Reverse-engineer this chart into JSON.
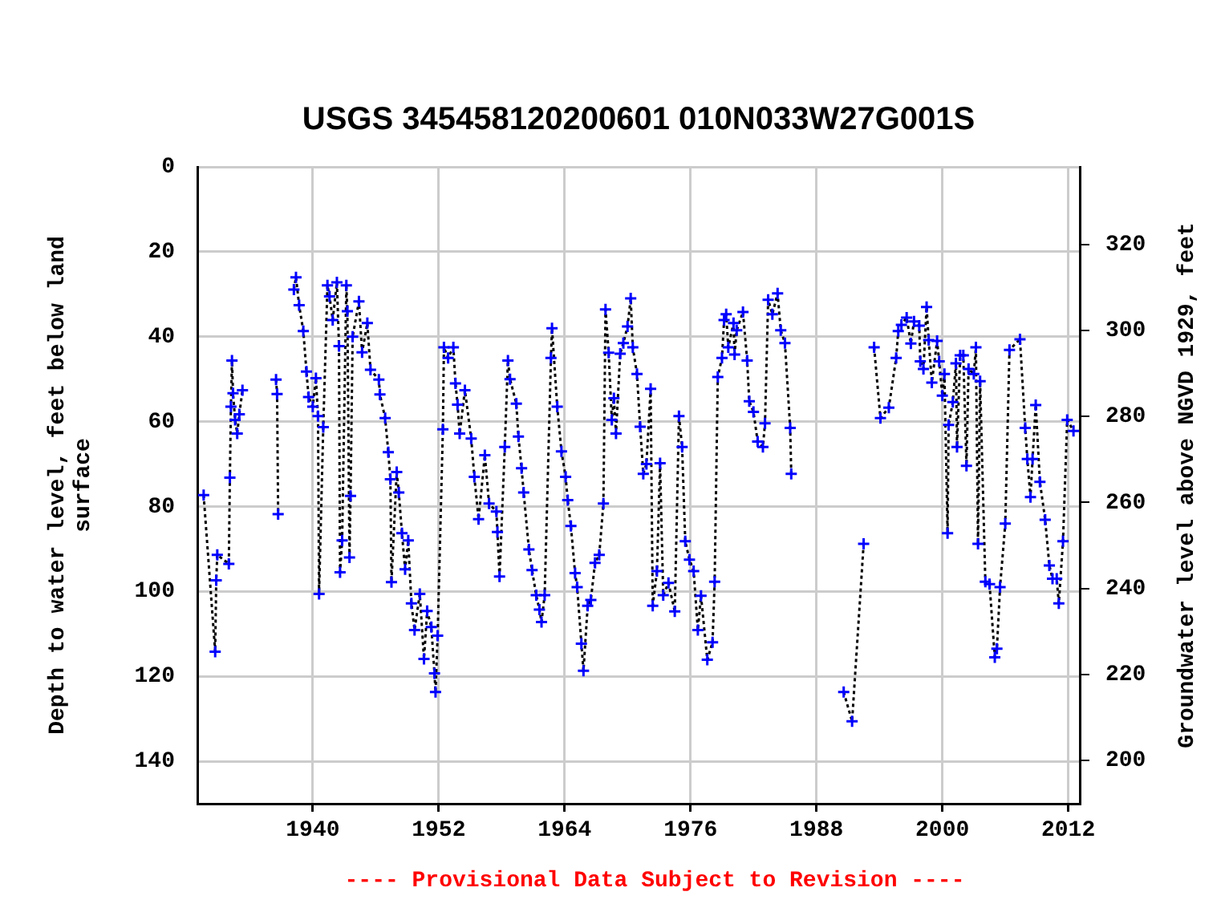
{
  "chart_data": {
    "type": "line",
    "title": "USGS 345458120200601 010N033W27G001S",
    "ylabel": "Depth to water level, feet below land surface",
    "y2label": "Groundwater level above NGVD 1929, feet",
    "annotations": [
      "---- Provisional Data Subject to Revision ----"
    ],
    "xlim": [
      1929,
      2013.1
    ],
    "xticks": [
      1940,
      1952,
      1964,
      1976,
      1988,
      2000,
      2012
    ],
    "ylim": [
      150,
      0
    ],
    "yticks": [
      0,
      20,
      40,
      60,
      80,
      100,
      120,
      140
    ],
    "y2lim": [
      190,
      338
    ],
    "y2ticks": [
      200,
      220,
      240,
      260,
      280,
      300,
      320
    ],
    "grid": true,
    "legend": false,
    "marker": "cross",
    "line_style": "dotted",
    "series": [
      {
        "color": "#0000ff",
        "x": [
          1929.6,
          1930.7,
          1930.8,
          1930.9,
          1932.0,
          1932.1,
          1932.2,
          1932.3,
          1932.4,
          1932.6,
          1932.8,
          1933.0,
          1933.3,
          1935,
          1936.5,
          1936.6,
          1936.7,
          1937.5,
          1938.2,
          1938.4,
          1938.7,
          1939.1,
          1939.4,
          1939.6,
          1940.0,
          1940.3,
          1940.5,
          1940.6,
          1941.0,
          1941.4,
          1941.6,
          1941.9,
          1942.3,
          1942.5,
          1942.6,
          1942.8,
          1943.2,
          1943.3,
          1943.5,
          1943.6,
          1943.8,
          1944.4,
          1944.7,
          1945.2,
          1945.5,
          1946.3,
          1946.4,
          1946.9,
          1947.2,
          1947.4,
          1947.5,
          1948.0,
          1948.2,
          1948.5,
          1948.8,
          1949.1,
          1949.4,
          1949.7,
          1950.2,
          1950.6,
          1950.9,
          1951.3,
          1951.6,
          1951.7,
          1951.9,
          1952.4,
          1952.5,
          1952.9,
          1953.4,
          1953.6,
          1953.8,
          1954.0,
          1954.5,
          1955.1,
          1955.4,
          1955.8,
          1956.4,
          1956.8,
          1957.5,
          1957.6,
          1957.8,
          1958.3,
          1958.6,
          1958.8,
          1959.4,
          1959.6,
          1959.9,
          1960.1,
          1960.6,
          1960.9,
          1961.3,
          1961.6,
          1961.8,
          1962.1,
          1962.7,
          1962.8,
          1963.3,
          1963.7,
          1964.1,
          1964.3,
          1964.6,
          1965.0,
          1965.2,
          1965.6,
          1965.8,
          1966.2,
          1966.5,
          1966.9,
          1967.3,
          1967.7,
          1967.9,
          1968.2,
          1968.5,
          1968.7,
          1968.9,
          1969.3,
          1969.6,
          1970.0,
          1970.3,
          1970.5,
          1970.9,
          1971.2,
          1971.5,
          1971.8,
          1972.2,
          1972.4,
          1972.8,
          1973.1,
          1973.4,
          1973.9,
          1974.5,
          1974.9,
          1975.2,
          1975.5,
          1975.9,
          1976.3,
          1976.7,
          1977.0,
          1977.6,
          1978.1,
          1978.3,
          1978.6,
          1979.0,
          1979.2,
          1979.4,
          1979.6,
          1980.1,
          1980.2,
          1980.4,
          1981.0,
          1981.4,
          1981.6,
          1982.0,
          1982.4,
          1982.9,
          1983.1,
          1983.4,
          1983.8,
          1984.3,
          1984.6,
          1985.0,
          1985.5,
          1985.6,
          1988,
          1990.6,
          1991.4,
          1992.5,
          1993,
          1993.5,
          1994.1,
          1994.9,
          1995.6,
          1995.8,
          1996.1,
          1996.6,
          1997.0,
          1997.3,
          1997.8,
          1997.9,
          1998.2,
          1998.5,
          1998.7,
          1999.0,
          1999.5,
          1999.7,
          2000.0,
          2000.2,
          2000.5,
          2000.6,
          2001.0,
          2001.3,
          2001.4,
          2001.7,
          2002.0,
          2002.3,
          2002.5,
          2003.0,
          2003.2,
          2003.4,
          2003.6,
          2004.1,
          2004.5,
          2005.0,
          2005.2,
          2005.5,
          2006.0,
          2006.4,
          2007.4,
          2007.9,
          2008.1,
          2008.4,
          2008.6,
          2008.9,
          2009.3,
          2009.8,
          2010.2,
          2010.5,
          2010.9,
          2011.1,
          2011.5,
          2011.9,
          2012.5
        ],
        "values": [
          77.3,
          114.2,
          97.4,
          91.4,
          93.5,
          73.2,
          56.5,
          45.6,
          53.3,
          59.6,
          62.8,
          58.3,
          52.6,
          null,
          50.1,
          53.5,
          81.8,
          null,
          28.9,
          26,
          32.6,
          38.7,
          48.2,
          54.2,
          56.5,
          49.8,
          58.7,
          100.6,
          61.3,
          27.9,
          30.5,
          36.1,
          27.2,
          42.2,
          95.5,
          88,
          27.9,
          34,
          92,
          77.5,
          40,
          31.7,
          43.7,
          36.8,
          47.8,
          50.1,
          53.6,
          59.2,
          67.2,
          73.6,
          97.8,
          71.9,
          76.7,
          86.3,
          94.8,
          88,
          102.8,
          109.1,
          100.6,
          115.9,
          104.6,
          108.4,
          119.3,
          123.7,
          110.4,
          61.8,
          42.5,
          45,
          42.5,
          51,
          56,
          62.8,
          52.6,
          64,
          73,
          83,
          67.9,
          79.3,
          81.2,
          86,
          96.5,
          66,
          45.6,
          50,
          55.8,
          63.5,
          71,
          76.7,
          90.1,
          95,
          100.9,
          104.3,
          107.2,
          100.9,
          45,
          38,
          56.5,
          67,
          73,
          78.5,
          84.6,
          95.7,
          99,
          112.3,
          118.7,
          103.4,
          102,
          93.3,
          91.4,
          79.3,
          33.6,
          43.8,
          59.6,
          54.5,
          62.8,
          44,
          41.5,
          37.6,
          31,
          42.5,
          48.8,
          61.2,
          72.3,
          70,
          52.3,
          103.4,
          95.2,
          69.8,
          100.9,
          98,
          104.7,
          58.7,
          66,
          88.2,
          92.5,
          95.2,
          109.1,
          101,
          116.1,
          112,
          97.7,
          49.5,
          45,
          36.1,
          34.7,
          42.5,
          36.8,
          44.2,
          38.5,
          34.2,
          45.6,
          55.2,
          57.7,
          64.7,
          66,
          60.4,
          31.3,
          34.7,
          29.8,
          38.5,
          41.5,
          61.5,
          72.3,
          null,
          123.7,
          130.6,
          88.8,
          null,
          42.5,
          59.2,
          56.7,
          45,
          38.7,
          37.2,
          35.5,
          41.6,
          36.4,
          37.4,
          45.8,
          47.6,
          33,
          40.8,
          50.8,
          41,
          45.8,
          53.9,
          48.8,
          86.3,
          60.8,
          55.4,
          46.3,
          66,
          44.4,
          44.4,
          70.4,
          47.6,
          48.8,
          42.5,
          88.8,
          50.5,
          97.7,
          98.3,
          115.5,
          113.5,
          99,
          84,
          43.1,
          40.6,
          61.5,
          68.8,
          77.8,
          68.8,
          56.1,
          74.2,
          83.1,
          93.9,
          97,
          97,
          102.8,
          88.2,
          59.6,
          62.2
        ]
      }
    ]
  }
}
